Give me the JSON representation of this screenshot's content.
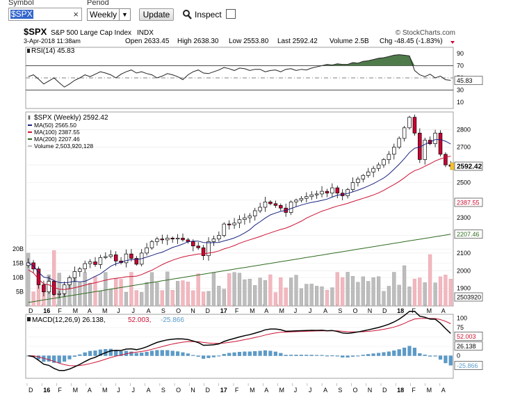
{
  "toolbar": {
    "symbol_label": "Symbol",
    "symbol_value": "$SPX",
    "clear_glyph": "×",
    "period_label": "Period",
    "period_value": "Weekly",
    "update_label": "Update",
    "inspect_label": "Inspect"
  },
  "chart_header": {
    "ticker": "$SPX",
    "name": "S&P 500 Large Cap Index",
    "exchange": "INDX",
    "credit": "© StockCharts.com",
    "date": "3-Apr-2018 11:38am",
    "open": "Open 2633.45",
    "high": "High 2638.30",
    "low": "Low 2553.80",
    "last": "Last 2592.42",
    "volume": "Volume 2.5B",
    "change": "Chg -48.45 (-1.83%)"
  },
  "colors": {
    "up": "#ffffff",
    "down": "#cc0033",
    "ma50": "#1a237e",
    "ma100": "#cc1133",
    "ma200": "#2e6b1f",
    "rsi_fill": "#4f7a4a",
    "macd_line": "#000000",
    "signal_line": "#cc1133",
    "histogram": "#5b9bc9",
    "vol_up": "#bdbdbd",
    "vol_down": "#f2b8bf"
  },
  "chart_data": [
    {
      "type": "line",
      "title": "RSI(14) 45.83",
      "ylim": [
        0,
        100
      ],
      "y_ticks": [
        10,
        30,
        50,
        70,
        90
      ],
      "reference_lines": [
        30,
        70
      ],
      "last_value_label": "45.83",
      "values": [
        52,
        55,
        48,
        40,
        45,
        50,
        42,
        35,
        40,
        46,
        50,
        55,
        52,
        56,
        60,
        58,
        55,
        50,
        56,
        60,
        63,
        58,
        60,
        57,
        55,
        50,
        53,
        57,
        55,
        52,
        47,
        55,
        60,
        63,
        58,
        57,
        60,
        63,
        67,
        65,
        62,
        66,
        65,
        62,
        64,
        64,
        60,
        62,
        63,
        60,
        64,
        65,
        62,
        64,
        63,
        66,
        68,
        70,
        72,
        71,
        73,
        72,
        72,
        75,
        74,
        77,
        78,
        80,
        82,
        83,
        85,
        87,
        88,
        87,
        86,
        62,
        55,
        52,
        56,
        50,
        53,
        47,
        46
      ]
    },
    {
      "type": "bar",
      "title": "$SPX (Weekly) 2592.42",
      "ylim": [
        1800,
        2900
      ],
      "y_ticks": [
        1900,
        2000,
        2100,
        2200,
        2300,
        2400,
        2500,
        2600,
        2700,
        2800
      ],
      "x_labels": [
        "D",
        "16",
        "F",
        "M",
        "A",
        "M",
        "J",
        "J",
        "A",
        "S",
        "O",
        "N",
        "D",
        "17",
        "F",
        "M",
        "A",
        "M",
        "J",
        "J",
        "A",
        "S",
        "O",
        "N",
        "D",
        "18",
        "F",
        "M",
        "A"
      ],
      "legend": [
        {
          "name": "MA(50) 2565.50",
          "color": "#1a237e"
        },
        {
          "name": "MA(100) 2387.55",
          "color": "#cc1133"
        },
        {
          "name": "MA(200) 2207.46",
          "color": "#2e6b1f"
        },
        {
          "name": "Volume 2,503,920,128",
          "color": "#bdbdbd"
        }
      ],
      "last_value_label": "2592.42",
      "right_labels": [
        "2387.55",
        "2207.46",
        "2503920"
      ],
      "volume_ticks": [
        "20B",
        "15B",
        "10B",
        "5B"
      ],
      "closes": [
        2045,
        2010,
        1920,
        1880,
        1940,
        1865,
        1870,
        1920,
        1960,
        1995,
        2010,
        2040,
        2050,
        2035,
        2075,
        2080,
        2090,
        2055,
        2045,
        2095,
        2070,
        2037,
        2100,
        2130,
        2165,
        2180,
        2175,
        2185,
        2180,
        2185,
        2175,
        2165,
        2140,
        2130,
        2085,
        2165,
        2180,
        2200,
        2265,
        2260,
        2270,
        2290,
        2300,
        2310,
        2340,
        2360,
        2390,
        2380,
        2370,
        2355,
        2330,
        2390,
        2400,
        2410,
        2420,
        2430,
        2435,
        2450,
        2440,
        2470,
        2440,
        2425,
        2460,
        2500,
        2520,
        2540,
        2560,
        2580,
        2600,
        2630,
        2660,
        2700,
        2750,
        2810,
        2870,
        2780,
        2630,
        2740,
        2720,
        2780,
        2660,
        2600,
        2592
      ]
    },
    {
      "type": "line",
      "title": "MACD(12,26,9) 26.138, 52.003, -25.866",
      "ylim": [
        -60,
        110
      ],
      "y_ticks": [
        0,
        25,
        50,
        75,
        100
      ],
      "series": [
        {
          "name": "MACD(12,26,9) 26.138",
          "color": "#000000"
        },
        {
          "name": "52.003",
          "color": "#cc1133"
        },
        {
          "name": "-25.866",
          "color": "#5b9bc9"
        }
      ],
      "last_value_labels": [
        "52.003",
        "26.138",
        "-25.866"
      ]
    }
  ]
}
